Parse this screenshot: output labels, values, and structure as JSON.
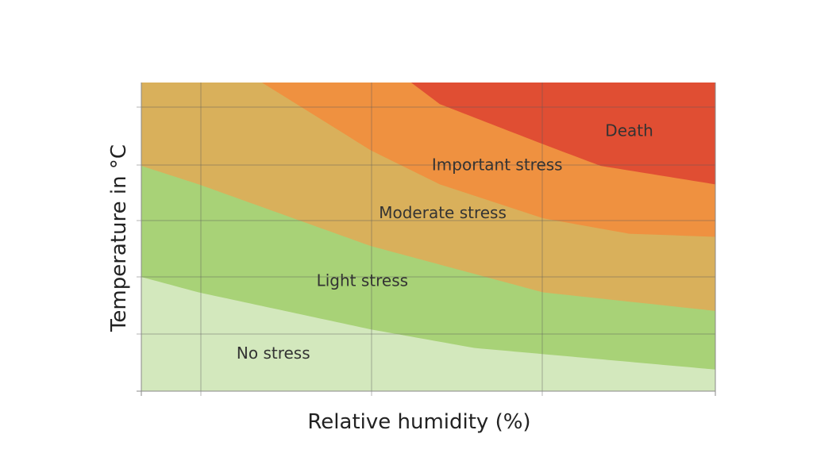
{
  "chart_data": {
    "type": "area",
    "title": "",
    "xlabel": "Relative humidity (%)",
    "ylabel": "Temperature in °C",
    "x_tick_labels": [],
    "y_tick_labels": [],
    "grid": true,
    "legend": "none",
    "xlim": [
      0,
      100
    ],
    "ylim": [
      0,
      100
    ],
    "zones": [
      {
        "name": "No stress",
        "color": "#d3e8bd",
        "upper": [
          [
            0,
            37
          ],
          [
            10,
            32
          ],
          [
            40,
            20
          ],
          [
            58,
            14
          ],
          [
            70,
            12
          ],
          [
            100,
            7
          ]
        ]
      },
      {
        "name": "Light stress",
        "color": "#a8d277",
        "upper": [
          [
            0,
            73
          ],
          [
            10,
            67
          ],
          [
            40,
            47
          ],
          [
            70,
            32
          ],
          [
            100,
            26
          ]
        ]
      },
      {
        "name": "Moderate stress",
        "color": "#d9b05b",
        "upper": [
          [
            0,
            100
          ],
          [
            21,
            100
          ],
          [
            40,
            78
          ],
          [
            52,
            67
          ],
          [
            70,
            56
          ],
          [
            85,
            51
          ],
          [
            100,
            50
          ]
        ]
      },
      {
        "name": "Important stress",
        "color": "#ef9140",
        "upper": [
          [
            0,
            100
          ],
          [
            47,
            100
          ],
          [
            52,
            93
          ],
          [
            70,
            80
          ],
          [
            80,
            73
          ],
          [
            100,
            67
          ]
        ]
      },
      {
        "name": "Death",
        "color": "#e04e33",
        "upper": [
          [
            0,
            100
          ],
          [
            100,
            100
          ]
        ]
      }
    ],
    "labels": [
      {
        "text": "No stress",
        "x": 23,
        "y": 12
      },
      {
        "text": "Light stress",
        "x": 38.5,
        "y": 35.5
      },
      {
        "text": "Moderate stress",
        "x": 52.5,
        "y": 57.5
      },
      {
        "text": "Important stress",
        "x": 62,
        "y": 73
      },
      {
        "text": "Death",
        "x": 85,
        "y": 84
      }
    ]
  }
}
